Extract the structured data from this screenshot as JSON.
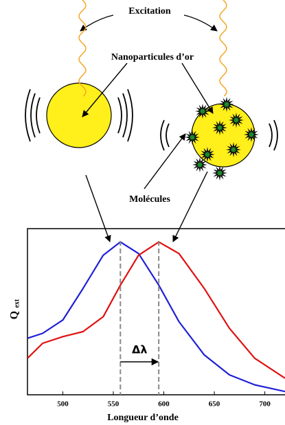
{
  "diagram": {
    "excitation": "Excitation",
    "nanoparticles": "Nanoparticules d’or",
    "molecules": "Molécules"
  },
  "chart_data": {
    "type": "line",
    "xlabel": "Longueur d’onde",
    "ylabel": {
      "main": "Q",
      "sub": "ext"
    },
    "x": [
      465,
      480,
      500,
      520,
      540,
      557,
      575,
      595,
      615,
      640,
      665,
      690,
      720
    ],
    "series": [
      {
        "color": "#1f1fd6",
        "values": [
          0.34,
          0.37,
          0.45,
          0.64,
          0.84,
          0.92,
          0.85,
          0.66,
          0.44,
          0.24,
          0.12,
          0.06,
          0.02
        ]
      },
      {
        "color": "#e01010",
        "values": [
          0.22,
          0.31,
          0.35,
          0.38,
          0.47,
          0.66,
          0.84,
          0.92,
          0.85,
          0.64,
          0.4,
          0.22,
          0.1
        ]
      }
    ],
    "peak_lines": [
      557,
      595
    ],
    "shift_label": "Δλ",
    "xlim": [
      465,
      720
    ],
    "ylim": [
      0,
      1
    ],
    "xticks": [
      500,
      550,
      600,
      650,
      700
    ]
  }
}
